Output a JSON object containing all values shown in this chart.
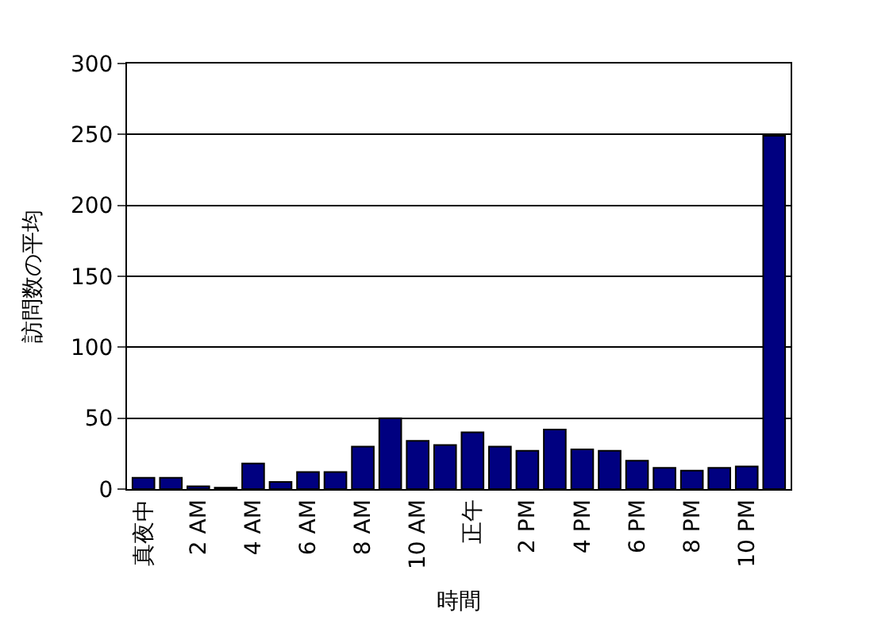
{
  "chart_data": {
    "type": "bar",
    "xlabel": "時間",
    "ylabel": "訪問数の平均",
    "categories": [
      "真夜中",
      null,
      "2 AM",
      null,
      "4 AM",
      null,
      "6 AM",
      null,
      "8 AM",
      null,
      "10 AM",
      null,
      "正午",
      null,
      "2 PM",
      null,
      "4 PM",
      null,
      "6 PM",
      null,
      "8 PM",
      null,
      "10 PM",
      null
    ],
    "values": [
      8,
      8,
      2,
      1,
      18,
      5,
      12,
      12,
      30,
      50,
      34,
      31,
      40,
      30,
      27,
      42,
      28,
      27,
      20,
      15,
      13,
      15,
      16,
      249
    ],
    "color": "#000080",
    "ylim": [
      0,
      300
    ],
    "yticks": [
      0,
      50,
      100,
      150,
      200,
      250,
      300
    ],
    "grid": "y",
    "legend": false
  }
}
